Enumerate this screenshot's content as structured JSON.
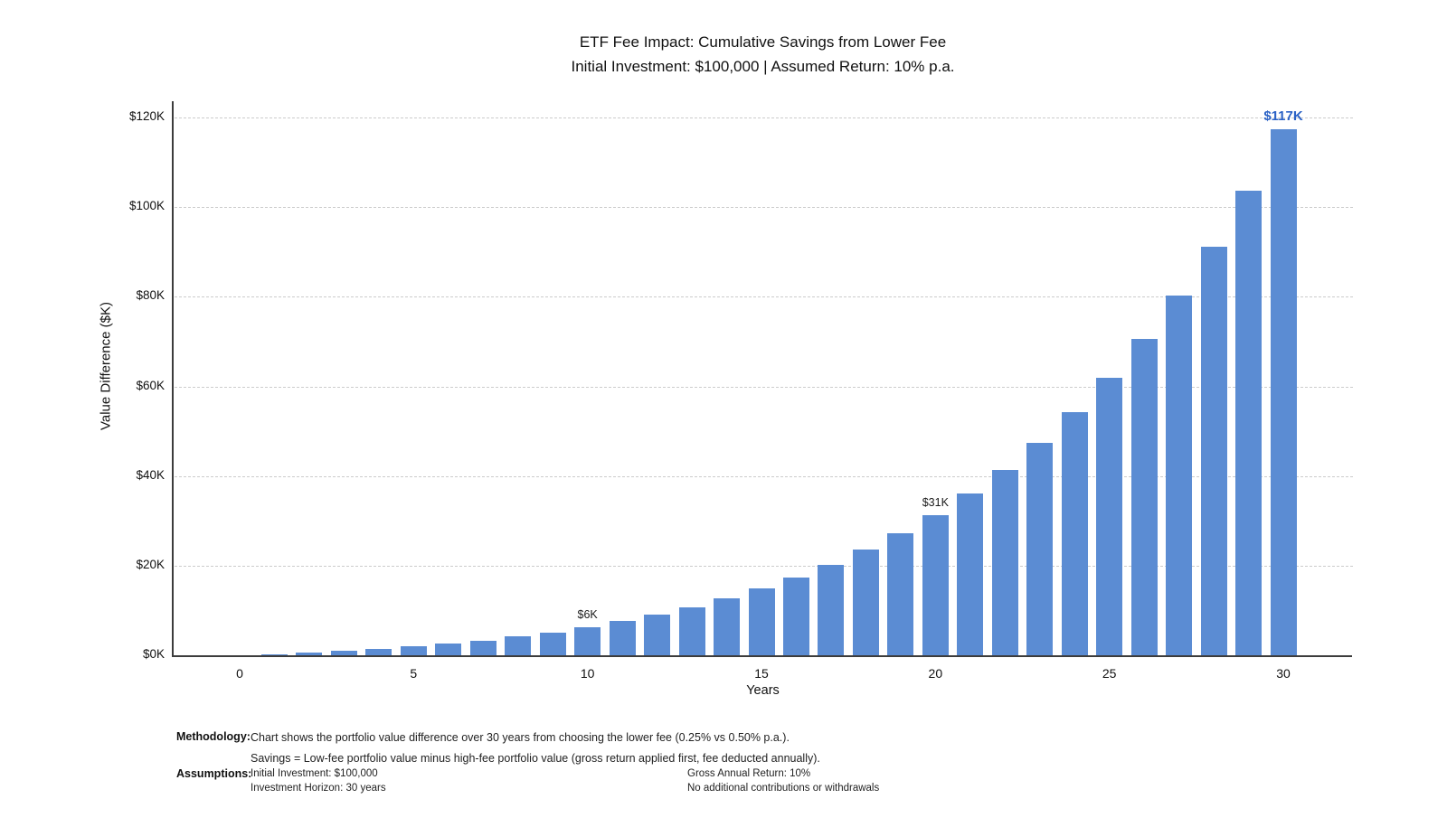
{
  "chart_data": {
    "type": "bar",
    "title": "ETF Fee Impact: Cumulative Savings from Lower Fee",
    "subtitle": "Initial Investment: $100,000 | Assumed Return: 10% p.a.",
    "xlabel": "Years",
    "ylabel": "Value Difference ($K)",
    "x": [
      0,
      1,
      2,
      3,
      4,
      5,
      6,
      7,
      8,
      9,
      10,
      11,
      12,
      13,
      14,
      15,
      16,
      17,
      18,
      19,
      20,
      21,
      22,
      23,
      24,
      25,
      26,
      27,
      28,
      29,
      30
    ],
    "values": [
      0,
      0.3,
      0.6,
      1.0,
      1.4,
      2.0,
      2.6,
      3.3,
      4.2,
      5.1,
      6.3,
      7.6,
      9.0,
      10.7,
      12.7,
      14.9,
      17.4,
      20.2,
      23.5,
      27.2,
      31.3,
      36.1,
      41.4,
      47.4,
      54.2,
      61.9,
      70.6,
      80.3,
      91.2,
      103.6,
      117.4
    ],
    "ylim": [
      0,
      125
    ],
    "yticks": [
      0,
      20,
      40,
      60,
      80,
      100,
      120
    ],
    "ytick_labels": [
      "$0K",
      "$20K",
      "$40K",
      "$60K",
      "$80K",
      "$100K",
      "$120K"
    ],
    "xticks": [
      0,
      5,
      10,
      15,
      20,
      25,
      30
    ],
    "grid": "horizontal-dashed",
    "legend": "none",
    "bar_color": "#5B8CD3",
    "annotations": [
      {
        "x": 10,
        "label": "$6K",
        "color": "#1a1a1a",
        "bold": false
      },
      {
        "x": 20,
        "label": "$31K",
        "color": "#1a1a1a",
        "bold": false
      },
      {
        "x": 30,
        "label": "$117K",
        "color": "#2B62C6",
        "bold": true
      }
    ]
  },
  "footer": {
    "methodology_label": "Methodology:",
    "methodology_lines": [
      "Chart shows the portfolio value difference over 30 years from choosing the lower fee (0.25% vs 0.50% p.a.).",
      "Savings = Low-fee portfolio value minus high-fee portfolio value (gross return applied first, fee deducted annually)."
    ],
    "assumptions_label": "Assumptions:",
    "assumptions_col1": [
      "Initial Investment: $100,000",
      "Investment Horizon: 30 years"
    ],
    "assumptions_col2": [
      "Gross Annual Return: 10%",
      "No additional contributions or withdrawals"
    ]
  }
}
